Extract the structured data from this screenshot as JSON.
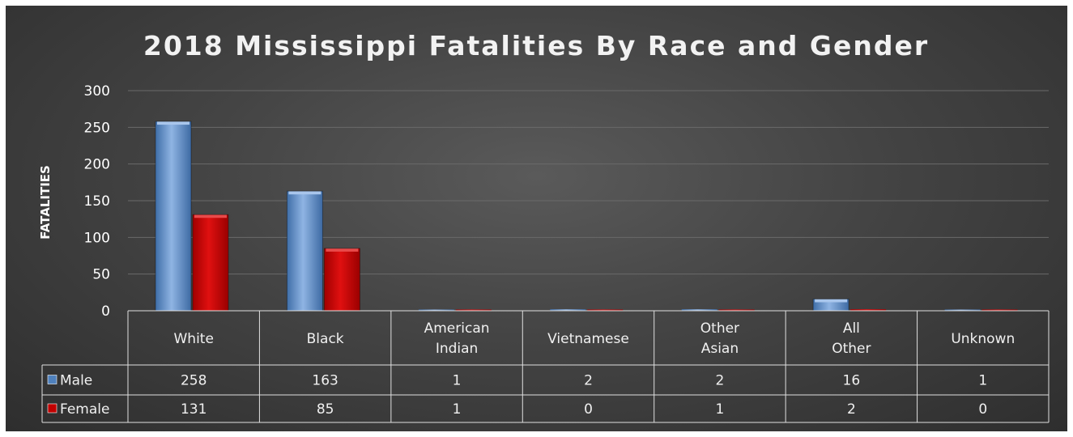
{
  "chart_data": {
    "type": "bar",
    "title": "2018 Mississippi Fatalities By Race and Gender",
    "ylabel": "FATALITIES",
    "xlabel": "",
    "ylim": [
      0,
      300
    ],
    "yticks": [
      0,
      50,
      100,
      150,
      200,
      250,
      300
    ],
    "grid": true,
    "legend": "data-table",
    "categories": [
      "White",
      "Black",
      "American Indian",
      "Vietnamese",
      "Other Asian",
      "All Other",
      "Unknown"
    ],
    "series": [
      {
        "name": "Male",
        "color": "#4f81bd",
        "values": [
          258,
          163,
          1,
          2,
          2,
          16,
          1
        ]
      },
      {
        "name": "Female",
        "color": "#c00000",
        "values": [
          131,
          85,
          1,
          0,
          1,
          2,
          0
        ]
      }
    ]
  }
}
